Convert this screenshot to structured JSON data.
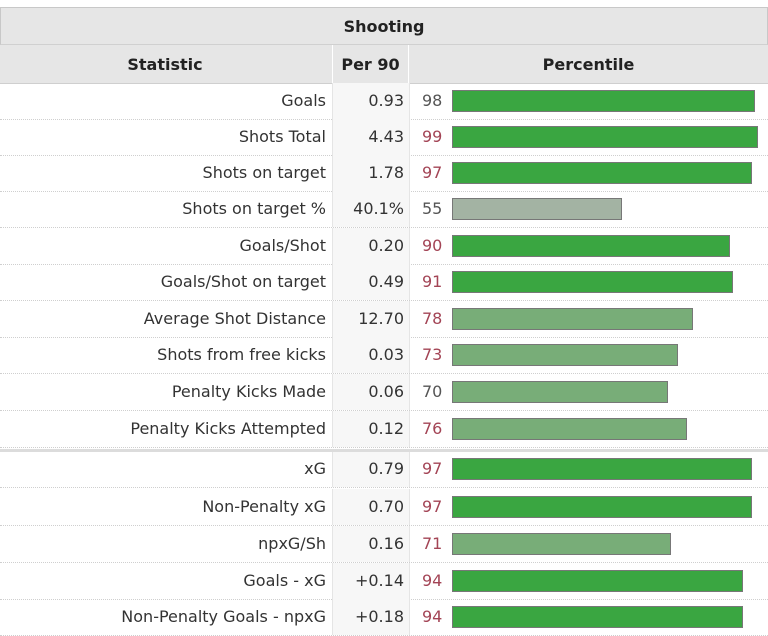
{
  "table": {
    "title": "Shooting",
    "headers": {
      "statistic": "Statistic",
      "per90": "Per 90",
      "percentile": "Percentile"
    },
    "colors": {
      "high": "#3aa641",
      "mid": "#78ad78",
      "low": "#a3b3a3",
      "pct_red": "#a34455",
      "pct_gray": "#555555"
    },
    "rows": [
      {
        "stat": "Goals",
        "per90": "0.93",
        "pct": "98"
      },
      {
        "stat": "Shots Total",
        "per90": "4.43",
        "pct": "99"
      },
      {
        "stat": "Shots on target",
        "per90": "1.78",
        "pct": "97"
      },
      {
        "stat": "Shots on target %",
        "per90": "40.1%",
        "pct": "55"
      },
      {
        "stat": "Goals/Shot",
        "per90": "0.20",
        "pct": "90"
      },
      {
        "stat": "Goals/Shot on target",
        "per90": "0.49",
        "pct": "91"
      },
      {
        "stat": "Average Shot Distance",
        "per90": "12.70",
        "pct": "78"
      },
      {
        "stat": "Shots from free kicks",
        "per90": "0.03",
        "pct": "73"
      },
      {
        "stat": "Penalty Kicks Made",
        "per90": "0.06",
        "pct": "70"
      },
      {
        "stat": "Penalty Kicks Attempted",
        "per90": "0.12",
        "pct": "76"
      },
      {
        "stat": "xG",
        "per90": "0.79",
        "pct": "97"
      },
      {
        "stat": "Non-Penalty xG",
        "per90": "0.70",
        "pct": "97"
      },
      {
        "stat": "npxG/Sh",
        "per90": "0.16",
        "pct": "71"
      },
      {
        "stat": "Goals - xG",
        "per90": "+0.14",
        "pct": "94"
      },
      {
        "stat": "Non-Penalty Goals - npxG",
        "per90": "+0.18",
        "pct": "94"
      }
    ]
  }
}
